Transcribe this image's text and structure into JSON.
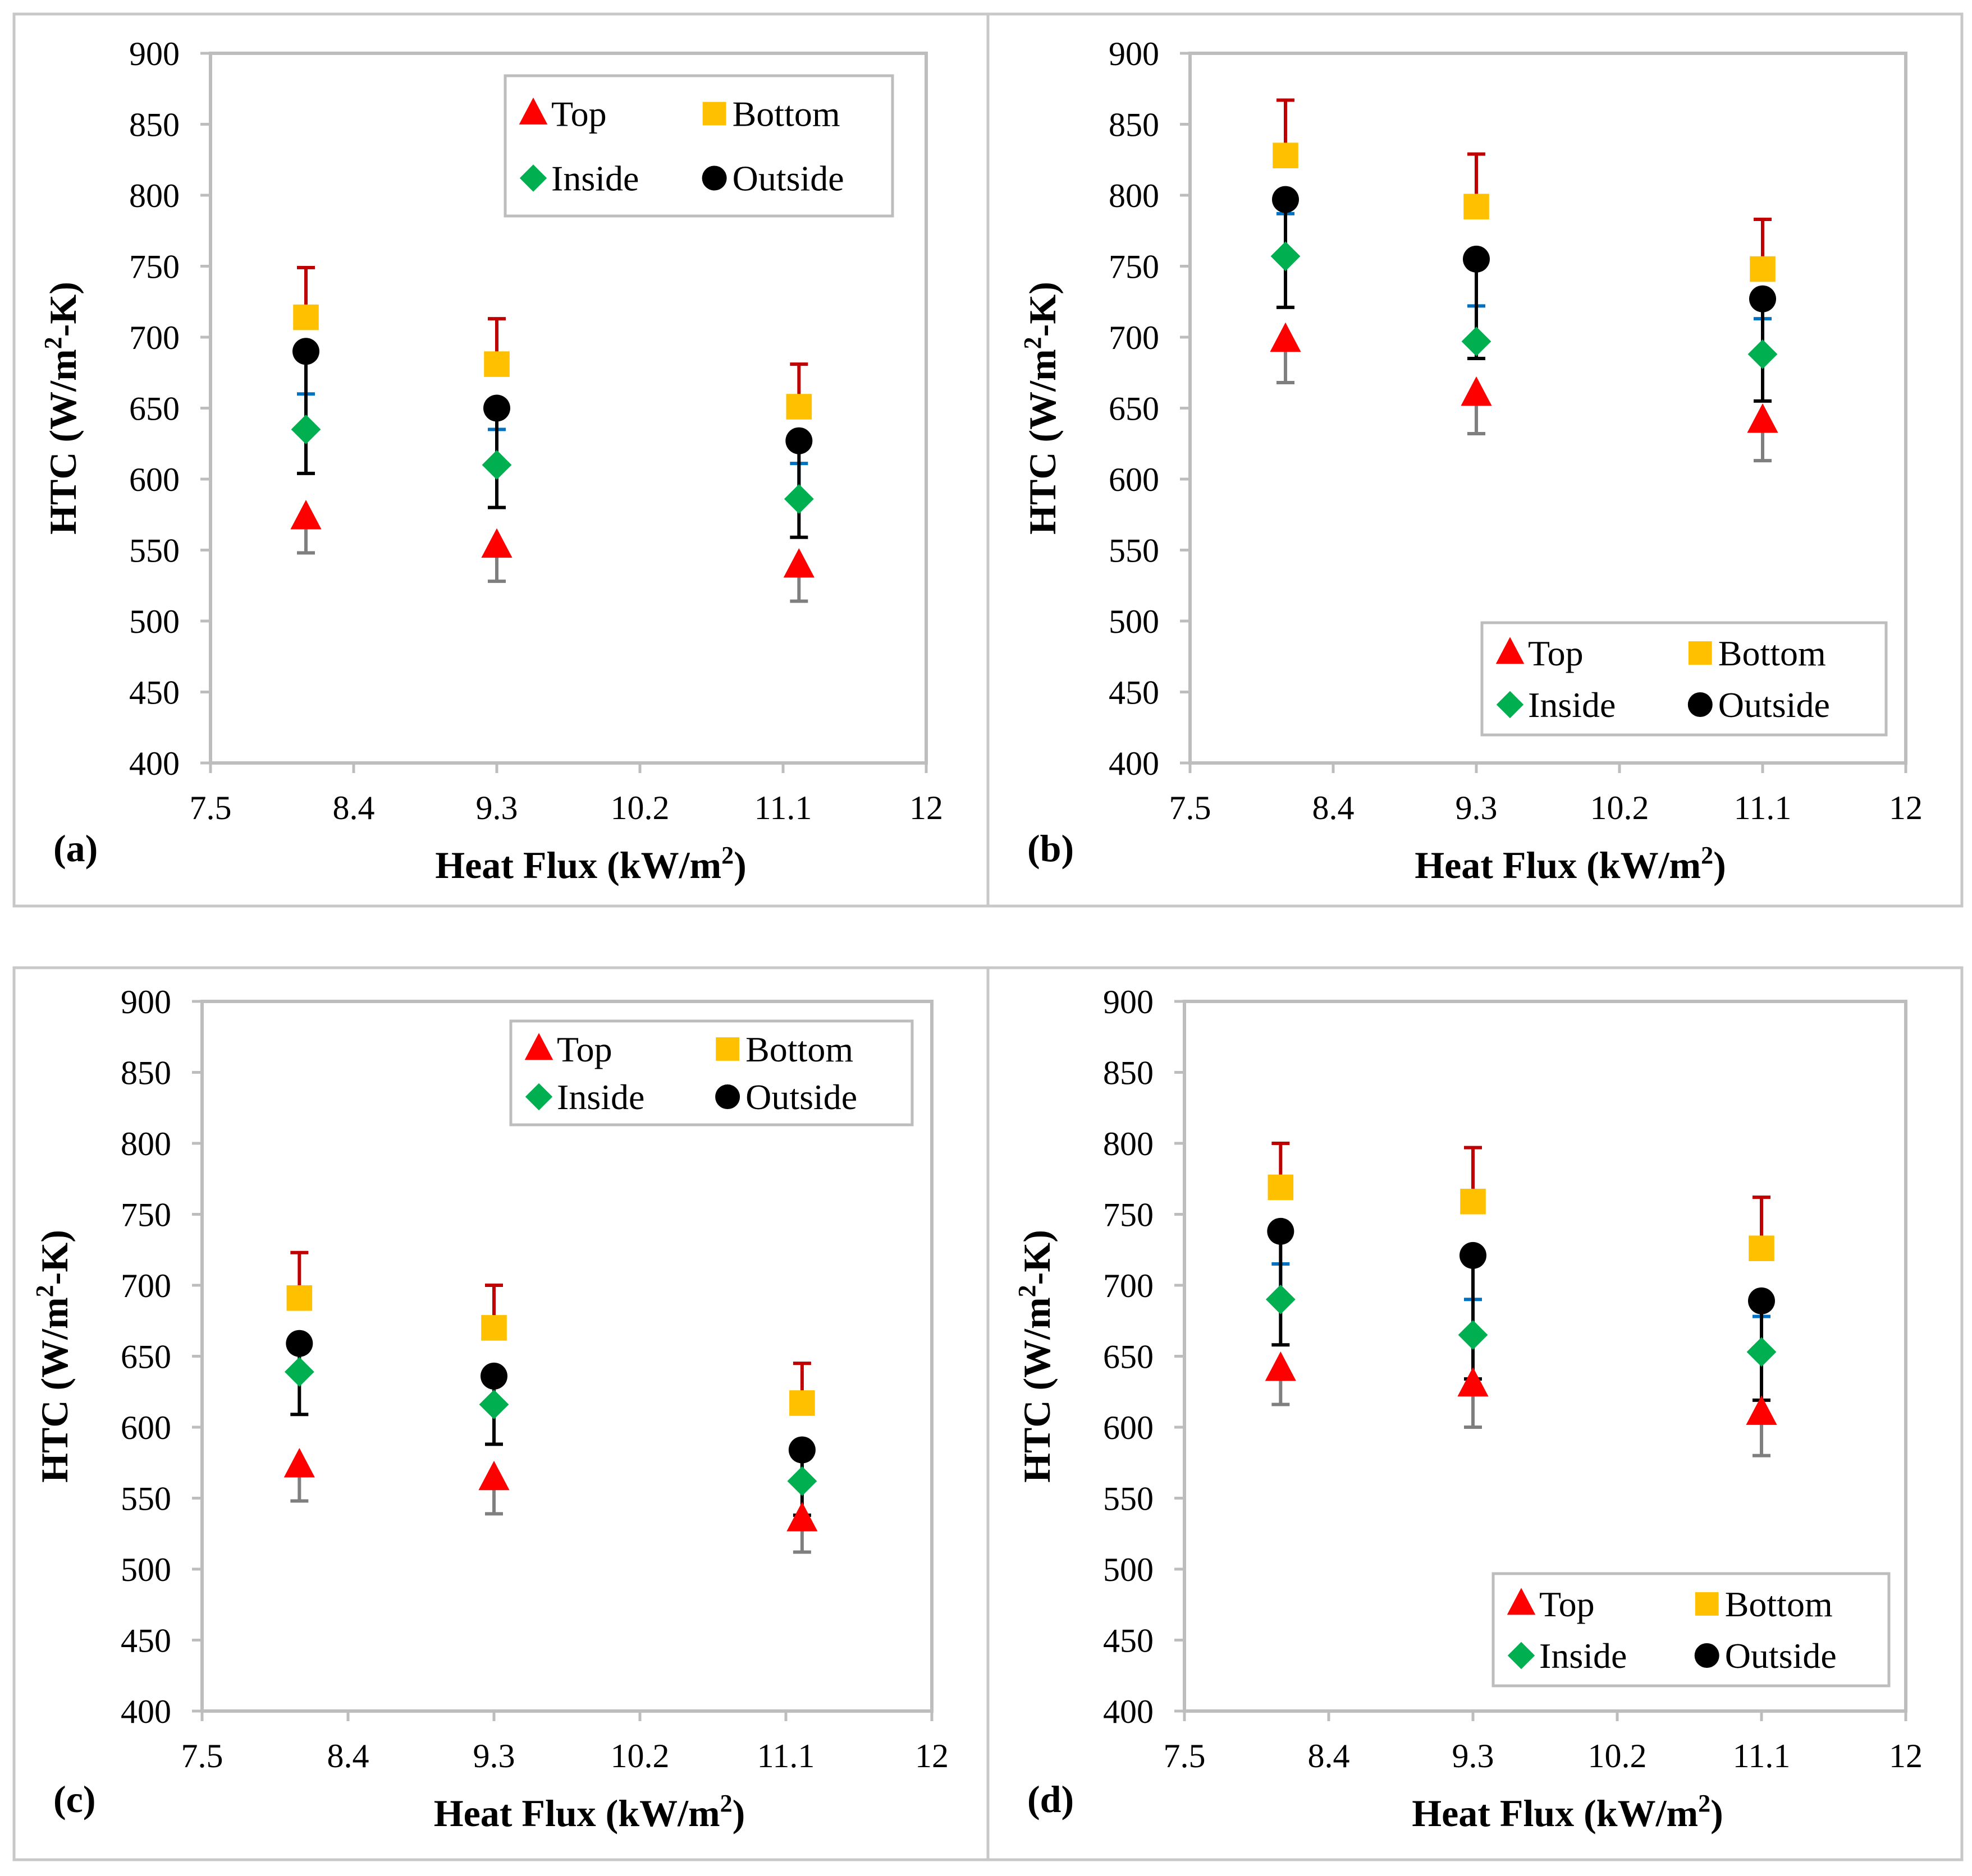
{
  "figure": {
    "colors": {
      "Top": "#ff0000",
      "Bottom": "#ffc000",
      "Inside": "#00b050",
      "Outside": "#000000",
      "err_Top": "#7f7f7f",
      "err_Bottom": "#c00000",
      "err_Inside": "#0070c0",
      "err_Outside": "#000000",
      "frame": "#bdbdbd"
    }
  },
  "chart_data": [
    {
      "id": "a",
      "panel_label": "(a)",
      "type": "scatter",
      "xlabel": "Heat Flux (kW/m",
      "xlabel_sup": "2",
      "xlabel_end": ")",
      "ylabel": "HTC (W/m",
      "ylabel_sup": "2",
      "ylabel_end": "-K)",
      "xlim": [
        7.5,
        12
      ],
      "ylim": [
        400,
        900
      ],
      "xticks": [
        "7.5",
        "8.4",
        "9.3",
        "10.2",
        "11.1",
        "12"
      ],
      "yticks": [
        "900",
        "850",
        "800",
        "750",
        "700",
        "650",
        "600",
        "550",
        "500",
        "450",
        "400"
      ],
      "legend_position": "top-right",
      "legend": [
        "Top",
        "Bottom",
        "Inside",
        "Outside"
      ],
      "series": [
        {
          "name": "Top",
          "marker": "triangle",
          "x": [
            8.1,
            9.3,
            11.2
          ],
          "y": [
            573,
            553,
            539
          ],
          "err": [
            25,
            25,
            25
          ]
        },
        {
          "name": "Bottom",
          "marker": "square",
          "x": [
            8.1,
            9.3,
            11.2
          ],
          "y": [
            714,
            681,
            651
          ],
          "err": [
            35,
            32,
            30
          ]
        },
        {
          "name": "Inside",
          "marker": "diamond",
          "x": [
            8.1,
            9.3,
            11.2
          ],
          "y": [
            635,
            610,
            586
          ],
          "err": [
            25,
            25,
            25
          ]
        },
        {
          "name": "Outside",
          "marker": "circle",
          "x": [
            8.1,
            9.3,
            11.2
          ],
          "y": [
            690,
            650,
            627
          ],
          "err": [
            86,
            70,
            68
          ]
        }
      ]
    },
    {
      "id": "b",
      "panel_label": "(b)",
      "type": "scatter",
      "xlabel": "Heat Flux (kW/m",
      "xlabel_sup": "2",
      "xlabel_end": ")",
      "ylabel": "HTC (W/m",
      "ylabel_sup": "2",
      "ylabel_end": "-K)",
      "xlim": [
        7.5,
        12
      ],
      "ylim": [
        400,
        900
      ],
      "xticks": [
        "7.5",
        "8.4",
        "9.3",
        "10.2",
        "11.1",
        "12"
      ],
      "yticks": [
        "900",
        "850",
        "800",
        "750",
        "700",
        "650",
        "600",
        "550",
        "500",
        "450",
        "400"
      ],
      "legend_position": "bottom-right",
      "legend": [
        "Top",
        "Bottom",
        "Inside",
        "Outside"
      ],
      "series": [
        {
          "name": "Top",
          "marker": "triangle",
          "x": [
            8.1,
            9.3,
            11.1
          ],
          "y": [
            698,
            660,
            641
          ],
          "err": [
            30,
            28,
            28
          ]
        },
        {
          "name": "Bottom",
          "marker": "square",
          "x": [
            8.1,
            9.3,
            11.1
          ],
          "y": [
            828,
            792,
            748
          ],
          "err": [
            39,
            37,
            35
          ]
        },
        {
          "name": "Inside",
          "marker": "diamond",
          "x": [
            8.1,
            9.3,
            11.1
          ],
          "y": [
            757,
            697,
            688
          ],
          "err": [
            30,
            25,
            25
          ]
        },
        {
          "name": "Outside",
          "marker": "circle",
          "x": [
            8.1,
            9.3,
            11.1
          ],
          "y": [
            797,
            755,
            727
          ],
          "err": [
            76,
            70,
            72
          ]
        }
      ]
    },
    {
      "id": "c",
      "panel_label": "(c)",
      "type": "scatter",
      "xlabel": "Heat Flux (kW/m",
      "xlabel_sup": "2",
      "xlabel_end": ")",
      "ylabel": "HTC (W/m",
      "ylabel_sup": "2",
      "ylabel_end": "-K)",
      "xlim": [
        7.5,
        12
      ],
      "ylim": [
        400,
        900
      ],
      "xticks": [
        "7.5",
        "8.4",
        "9.3",
        "10.2",
        "11.1",
        "12"
      ],
      "yticks": [
        "900",
        "850",
        "800",
        "750",
        "700",
        "650",
        "600",
        "550",
        "500",
        "450",
        "400"
      ],
      "legend_position": "top-right",
      "legend": [
        "Top",
        "Bottom",
        "Inside",
        "Outside"
      ],
      "series": [
        {
          "name": "Top",
          "marker": "triangle",
          "x": [
            8.1,
            9.3,
            11.2
          ],
          "y": [
            573,
            564,
            535
          ],
          "err": [
            25,
            25,
            23
          ]
        },
        {
          "name": "Bottom",
          "marker": "square",
          "x": [
            8.1,
            9.3,
            11.2
          ],
          "y": [
            691,
            670,
            617
          ],
          "err": [
            32,
            30,
            28
          ]
        },
        {
          "name": "Inside",
          "marker": "diamond",
          "x": [
            8.1,
            9.3,
            11.2
          ],
          "y": [
            639,
            616,
            562
          ],
          "err": [
            25,
            25,
            25
          ]
        },
        {
          "name": "Outside",
          "marker": "circle",
          "x": [
            8.1,
            9.3,
            11.2
          ],
          "y": [
            659,
            636,
            584
          ],
          "err": [
            50,
            48,
            46
          ]
        }
      ]
    },
    {
      "id": "d",
      "panel_label": "(d)",
      "type": "scatter",
      "xlabel": "Heat Flux (kW/m",
      "xlabel_sup": "2",
      "xlabel_end": ")",
      "ylabel": "HTC (W/m",
      "ylabel_sup": "2",
      "ylabel_end": "-K)",
      "xlim": [
        7.5,
        12
      ],
      "ylim": [
        400,
        900
      ],
      "xticks": [
        "7.5",
        "8.4",
        "9.3",
        "10.2",
        "11.1",
        "12"
      ],
      "yticks": [
        "900",
        "850",
        "800",
        "750",
        "700",
        "650",
        "600",
        "550",
        "500",
        "450",
        "400"
      ],
      "legend_position": "bottom-right",
      "legend": [
        "Top",
        "Bottom",
        "Inside",
        "Outside"
      ],
      "series": [
        {
          "name": "Top",
          "marker": "triangle",
          "x": [
            8.1,
            9.3,
            11.1
          ],
          "y": [
            641,
            630,
            610
          ],
          "err": [
            25,
            30,
            30
          ]
        },
        {
          "name": "Bottom",
          "marker": "square",
          "x": [
            8.1,
            9.3,
            11.1
          ],
          "y": [
            769,
            759,
            726
          ],
          "err": [
            31,
            38,
            36
          ]
        },
        {
          "name": "Inside",
          "marker": "diamond",
          "x": [
            8.1,
            9.3,
            11.1
          ],
          "y": [
            690,
            665,
            653
          ],
          "err": [
            25,
            25,
            25
          ]
        },
        {
          "name": "Outside",
          "marker": "circle",
          "x": [
            8.1,
            9.3,
            11.1
          ],
          "y": [
            738,
            721,
            689
          ],
          "err": [
            80,
            87,
            70
          ]
        }
      ]
    }
  ]
}
